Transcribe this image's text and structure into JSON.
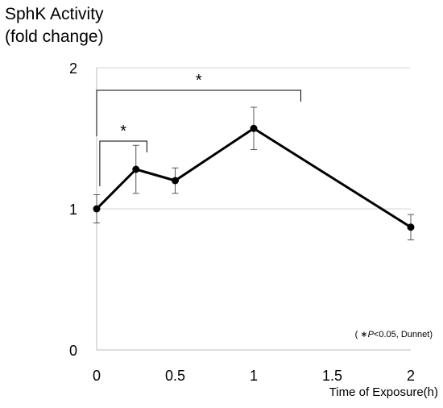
{
  "chart_data": {
    "type": "line",
    "title": "",
    "ylabel_lines": [
      "SphK Activity",
      "(fold change)"
    ],
    "xlabel": "Time of Exposure(h)",
    "xlim": [
      0,
      2
    ],
    "ylim": [
      0,
      2
    ],
    "x_ticks": [
      "0",
      "0.5",
      "1",
      "1.5",
      "2"
    ],
    "x_tick_values": [
      0,
      0.5,
      1,
      1.5,
      2
    ],
    "y_ticks": [
      "0",
      "1",
      "2"
    ],
    "y_tick_values": [
      0,
      1,
      2
    ],
    "grid": "horizontal",
    "series": [
      {
        "x": [
          0,
          0.25,
          0.5,
          1,
          2
        ],
        "y": [
          1.0,
          1.28,
          1.2,
          1.57,
          0.87
        ],
        "error": [
          0.1,
          0.17,
          0.09,
          0.15,
          0.09
        ],
        "color": "#000000"
      }
    ],
    "significance": [
      {
        "from": 0.02,
        "to": 0.32,
        "label": "*",
        "level": 1.48
      },
      {
        "from": 0.0,
        "to": 1.3,
        "label": "*",
        "level": 1.84
      }
    ],
    "annotation": {
      "prefix": "( ",
      "star": "∗",
      "p": "P",
      "rest": "<0.05, Dunnet)"
    }
  }
}
